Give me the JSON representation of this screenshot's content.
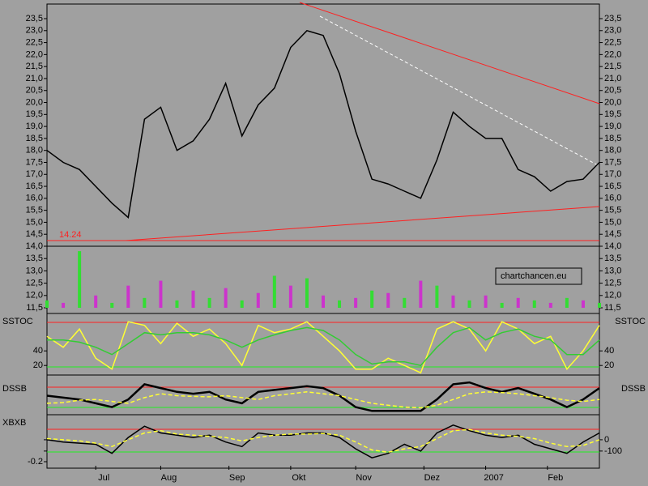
{
  "chart_data": [
    {
      "type": "line",
      "annotation": "14.24",
      "x": [
        0,
        5,
        10,
        15,
        20,
        25,
        30,
        35,
        40,
        45,
        50,
        55,
        60,
        65,
        70,
        75,
        80,
        85,
        90,
        95,
        100,
        105,
        110,
        115,
        120,
        125,
        130,
        135,
        140,
        145,
        150,
        155,
        160,
        165,
        170
      ],
      "xlim": [
        0,
        170
      ],
      "series": [
        {
          "color": "#000000",
          "values": [
            18.0,
            17.5,
            17.2,
            16.5,
            15.8,
            15.2,
            19.3,
            19.8,
            18.0,
            18.4,
            19.3,
            20.8,
            18.6,
            19.9,
            20.6,
            22.3,
            23.0,
            22.8,
            21.2,
            18.8,
            16.8,
            16.6,
            16.3,
            16.0,
            17.6,
            19.6,
            19.0,
            18.5,
            18.5,
            17.2,
            16.9,
            16.3,
            16.7,
            16.8,
            17.5
          ]
        }
      ],
      "ylim": [
        14,
        23.5
      ],
      "yticks": [
        {
          "value": 23.5,
          "label": "23,5"
        },
        {
          "value": 23,
          "label": "23,0"
        },
        {
          "value": 22.5,
          "label": "22,5"
        },
        {
          "value": 22,
          "label": "22,0"
        },
        {
          "value": 21.5,
          "label": "21,5"
        },
        {
          "value": 21,
          "label": "21,0"
        },
        {
          "value": 20.5,
          "label": "20,5"
        },
        {
          "value": 20,
          "label": "20,0"
        },
        {
          "value": 19.5,
          "label": "19,5"
        },
        {
          "value": 19,
          "label": "19,0"
        },
        {
          "value": 18.5,
          "label": "18,5"
        },
        {
          "value": 18,
          "label": "18,0"
        },
        {
          "value": 17.5,
          "label": "17,5"
        },
        {
          "value": 17,
          "label": "17,0"
        },
        {
          "value": 16.5,
          "label": "16,5"
        },
        {
          "value": 16,
          "label": "16,0"
        },
        {
          "value": 15.5,
          "label": "15,5"
        },
        {
          "value": 15,
          "label": "15,0"
        },
        {
          "value": 14.5,
          "label": "14,5"
        },
        {
          "value": 14,
          "label": "14,0"
        }
      ]
    },
    {
      "type": "bar",
      "annotation": "chartchancen.eu",
      "x": [
        0,
        5,
        10,
        15,
        20,
        25,
        30,
        35,
        40,
        45,
        50,
        55,
        60,
        65,
        70,
        75,
        80,
        85,
        90,
        95,
        100,
        105,
        110,
        115,
        120,
        125,
        130,
        135,
        140,
        145,
        150,
        155,
        160,
        165,
        170
      ],
      "xlim": [
        0,
        170
      ],
      "series": [
        {
          "color": "#33dd33",
          "values": [
            11.8,
            11.7,
            13.8,
            12.0,
            11.7,
            12.4,
            11.9,
            12.6,
            11.8,
            12.2,
            11.9,
            12.3,
            11.8,
            12.1,
            12.8,
            12.4,
            12.7,
            12.0,
            11.8,
            11.9,
            12.2,
            12.1,
            11.9,
            12.6,
            12.4,
            12.0,
            11.8,
            12.0,
            11.7,
            11.9,
            11.8,
            11.7,
            11.9,
            11.8,
            11.7
          ]
        }
      ],
      "ylim": [
        11.5,
        14
      ],
      "yticks": [
        {
          "value": 13.5,
          "label": "13,5"
        },
        {
          "value": 13,
          "label": "13,0"
        },
        {
          "value": 12.5,
          "label": "12,5"
        },
        {
          "value": 12,
          "label": "12,0"
        },
        {
          "value": 11.5,
          "label": "11,5"
        }
      ]
    },
    {
      "type": "line",
      "title": "SSTOC",
      "x": [
        0,
        5,
        10,
        15,
        20,
        25,
        30,
        35,
        40,
        45,
        50,
        55,
        60,
        65,
        70,
        75,
        80,
        85,
        90,
        95,
        100,
        105,
        110,
        115,
        120,
        125,
        130,
        135,
        140,
        145,
        150,
        155,
        160,
        165,
        170
      ],
      "xlim": [
        0,
        170
      ],
      "series": [
        {
          "color": "#ffff33",
          "values": [
            60,
            45,
            70,
            30,
            15,
            80,
            75,
            50,
            78,
            60,
            70,
            50,
            20,
            75,
            65,
            70,
            80,
            60,
            40,
            15,
            15,
            30,
            20,
            10,
            70,
            80,
            70,
            40,
            80,
            70,
            50,
            60,
            15,
            40,
            75
          ]
        },
        {
          "color": "#33cc33",
          "values": [
            55,
            55,
            52,
            45,
            35,
            50,
            65,
            62,
            65,
            65,
            62,
            55,
            45,
            55,
            62,
            68,
            72,
            68,
            55,
            35,
            22,
            25,
            25,
            20,
            45,
            65,
            72,
            55,
            65,
            70,
            60,
            55,
            35,
            35,
            55
          ]
        }
      ],
      "ylim": [
        8,
        88
      ],
      "yticks": [
        40,
        20
      ]
    },
    {
      "type": "line",
      "title": "DSSB",
      "x": [
        0,
        5,
        10,
        15,
        20,
        25,
        30,
        35,
        40,
        45,
        50,
        55,
        60,
        65,
        70,
        75,
        80,
        85,
        90,
        95,
        100,
        105,
        110,
        115,
        120,
        125,
        130,
        135,
        140,
        145,
        150,
        155,
        160,
        165,
        170
      ],
      "xlim": [
        0,
        170
      ],
      "series": [
        {
          "color": "#000000",
          "values": [
            50,
            45,
            40,
            30,
            20,
            40,
            80,
            70,
            60,
            55,
            60,
            40,
            30,
            60,
            65,
            70,
            75,
            70,
            50,
            20,
            10,
            10,
            10,
            10,
            40,
            80,
            85,
            70,
            60,
            70,
            55,
            40,
            20,
            40,
            70
          ]
        },
        {
          "color": "#ffff33",
          "values": [
            30,
            32,
            38,
            40,
            35,
            30,
            45,
            55,
            50,
            48,
            47,
            50,
            45,
            40,
            50,
            55,
            60,
            55,
            50,
            40,
            30,
            25,
            20,
            18,
            25,
            40,
            55,
            60,
            58,
            55,
            50,
            45,
            38,
            35,
            40
          ]
        }
      ],
      "ylim": [
        0,
        100
      ]
    },
    {
      "type": "line",
      "title": "XBXB",
      "x": [
        0,
        5,
        10,
        15,
        20,
        25,
        30,
        35,
        40,
        45,
        50,
        55,
        60,
        65,
        70,
        75,
        80,
        85,
        90,
        95,
        100,
        105,
        110,
        115,
        120,
        125,
        130,
        135,
        140,
        145,
        150,
        155,
        160,
        165,
        170
      ],
      "xlim": [
        0,
        170
      ],
      "xticks": [
        {
          "value": 15,
          "label": "Jul"
        },
        {
          "value": 35,
          "label": "Aug"
        },
        {
          "value": 56,
          "label": "Sep"
        },
        {
          "value": 75,
          "label": "Okt"
        },
        {
          "value": 95,
          "label": "Nov"
        },
        {
          "value": 116,
          "label": "Dez"
        },
        {
          "value": 135,
          "label": "2007"
        },
        {
          "value": 154,
          "label": "Feb"
        }
      ],
      "series": [
        {
          "color": "#000000",
          "values": [
            0,
            -20,
            -30,
            -40,
            -120,
            20,
            120,
            60,
            40,
            20,
            40,
            -20,
            -60,
            60,
            40,
            40,
            60,
            60,
            20,
            -80,
            -160,
            -120,
            -40,
            -100,
            60,
            130,
            80,
            40,
            20,
            40,
            -40,
            -80,
            -120,
            -20,
            60
          ]
        },
        {
          "color": "#ffff33",
          "values": [
            10,
            0,
            -10,
            -30,
            -60,
            0,
            60,
            80,
            50,
            40,
            30,
            20,
            -10,
            20,
            40,
            50,
            50,
            55,
            40,
            -20,
            -90,
            -110,
            -80,
            -60,
            10,
            80,
            90,
            60,
            40,
            30,
            10,
            -30,
            -60,
            -50,
            0
          ]
        }
      ],
      "ylim": [
        -230,
        200
      ],
      "yticks": [
        0,
        -100
      ],
      "y2lim": [
        -0.25,
        0.35
      ],
      "y2ticks": [
        -0.2
      ]
    }
  ]
}
